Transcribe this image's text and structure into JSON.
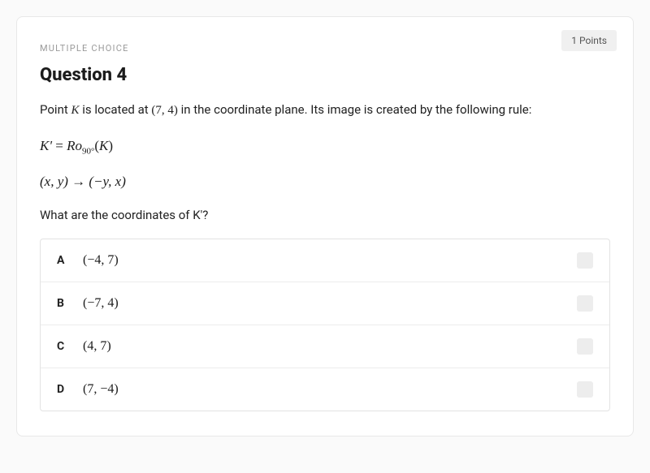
{
  "points_label": "1 Points",
  "question_type": "MULTIPLE CHOICE",
  "question_title": "Question 4",
  "body": {
    "pre_k": "Point ",
    "k": "K",
    "mid1": " is located at ",
    "coord": "(7, 4)",
    "post": " in the coordinate plane. Its image is created by the following rule:"
  },
  "formula1": {
    "lhs": "K'",
    "eq": " = ",
    "R": "R",
    "o": "o",
    "sub": "90°",
    "open": "(",
    "arg": "K",
    "close": ")"
  },
  "formula2": "(x, y) → (−y, x)",
  "prompt": {
    "pre": "What are the coordinates of ",
    "k": "K'",
    "post": "?"
  },
  "choices": [
    {
      "letter": "A",
      "text": "(−4, 7)"
    },
    {
      "letter": "B",
      "text": "(−7, 4)"
    },
    {
      "letter": "C",
      "text": "(4, 7)"
    },
    {
      "letter": "D",
      "text": "(7, −4)"
    }
  ],
  "colors": {
    "card_border": "#e8e8e8",
    "badge_bg": "#f0f0f0",
    "choice_border": "#e3e3e3",
    "checkbox_bg": "#ededed"
  }
}
